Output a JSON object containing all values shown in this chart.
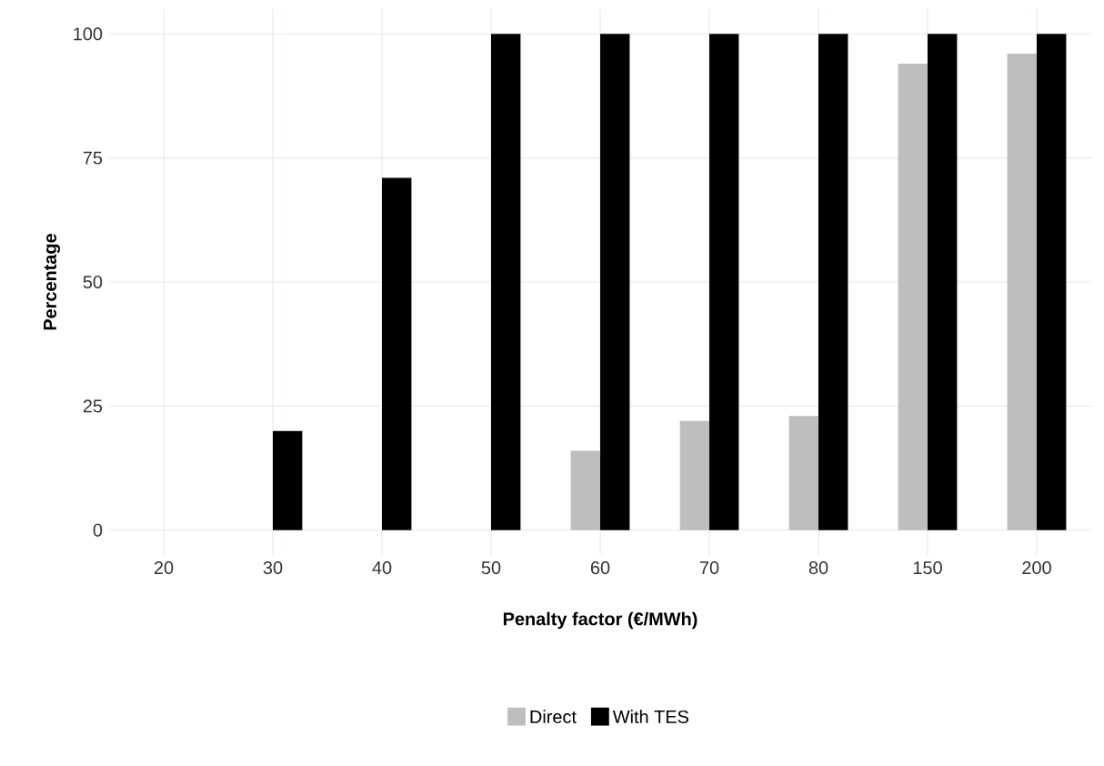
{
  "chart_data": {
    "type": "bar",
    "xlabel": "Penalty factor (€/MWh)",
    "ylabel": "Percentage",
    "categories": [
      "20",
      "30",
      "40",
      "50",
      "60",
      "70",
      "80",
      "150",
      "200"
    ],
    "series": [
      {
        "name": "Direct",
        "color": "#bebebe",
        "values": [
          0,
          0,
          0,
          0,
          16,
          22,
          23,
          94,
          96
        ]
      },
      {
        "name": "With TES",
        "color": "#000000",
        "values": [
          0,
          20,
          71,
          100,
          100,
          100,
          100,
          100,
          100
        ]
      }
    ],
    "ylim": [
      -5,
      105
    ],
    "yticks": [
      0,
      25,
      50,
      75,
      100
    ],
    "grid": true,
    "legend": "bottom"
  }
}
